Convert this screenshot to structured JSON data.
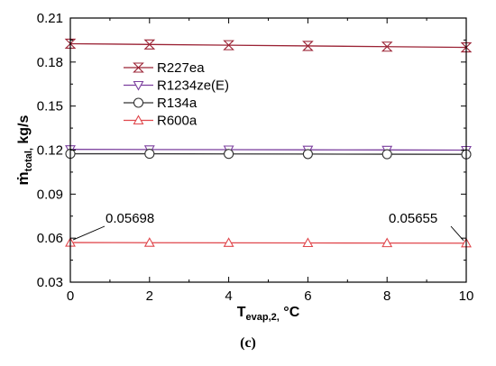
{
  "chart_data": {
    "type": "line",
    "x": [
      0,
      2,
      4,
      6,
      8,
      10
    ],
    "xlim": [
      0,
      10
    ],
    "ylim": [
      0.03,
      0.21
    ],
    "xticks": [
      "0",
      "2",
      "4",
      "6",
      "8",
      "10"
    ],
    "yticks": [
      "0.03",
      "0.06",
      "0.09",
      "0.12",
      "0.15",
      "0.18",
      "0.21"
    ],
    "xlabel": {
      "main": "T",
      "sub": "evap,2,",
      "unit": " °C"
    },
    "ylabel": {
      "main": "ṁ",
      "sub": "total,",
      "unit": " kg/s"
    },
    "grid": false,
    "legend_position": "upper-left",
    "series": [
      {
        "name": "R227ea",
        "marker": "hourglass",
        "color": "#9b2335",
        "values": [
          0.1925,
          0.192,
          0.1915,
          0.191,
          0.1905,
          0.19
        ]
      },
      {
        "name": "R1234ze(E)",
        "marker": "triangle-down",
        "color": "#7b3f9e",
        "values": [
          0.1205,
          0.1204,
          0.1203,
          0.1202,
          0.1201,
          0.12
        ]
      },
      {
        "name": "R134a",
        "marker": "circle",
        "color": "#333333",
        "values": [
          0.1175,
          0.1175,
          0.1174,
          0.1173,
          0.1172,
          0.1171
        ]
      },
      {
        "name": "R600a",
        "marker": "triangle-up",
        "color": "#e0474c",
        "values": [
          0.05698,
          0.0569,
          0.05681,
          0.05672,
          0.05664,
          0.05655
        ]
      }
    ],
    "annotations": [
      {
        "text": "0.05698",
        "x": 0,
        "y": 0.05698
      },
      {
        "text": "0.05655",
        "x": 10,
        "y": 0.05655
      }
    ]
  },
  "caption": "(c)"
}
